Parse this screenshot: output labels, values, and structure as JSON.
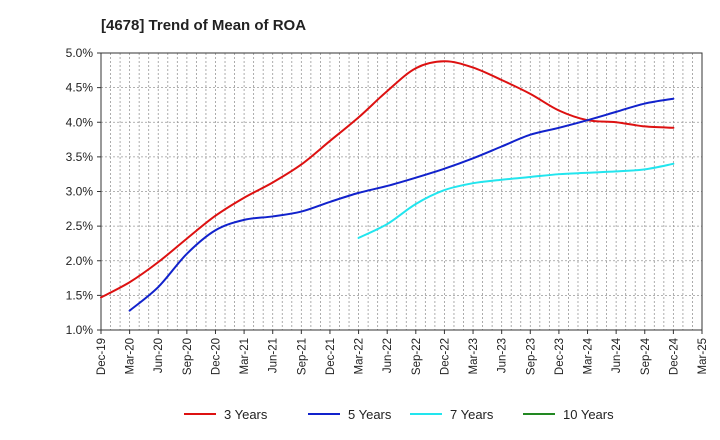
{
  "chart_data": {
    "type": "line",
    "title": "[4678]  Trend of Mean of ROA",
    "xlabel": "",
    "ylabel": "",
    "y_tick_labels": [
      "1.0%",
      "1.5%",
      "2.0%",
      "2.5%",
      "3.0%",
      "3.5%",
      "4.0%",
      "4.5%",
      "5.0%"
    ],
    "y_ticks": [
      1.0,
      1.5,
      2.0,
      2.5,
      3.0,
      3.5,
      4.0,
      4.5,
      5.0
    ],
    "ylim": [
      1.0,
      5.0
    ],
    "x_tick_labels": [
      "Dec-19",
      "Mar-20",
      "Jun-20",
      "Sep-20",
      "Dec-20",
      "Mar-21",
      "Jun-21",
      "Sep-21",
      "Dec-21",
      "Mar-22",
      "Jun-22",
      "Sep-22",
      "Dec-22",
      "Mar-23",
      "Jun-23",
      "Sep-23",
      "Dec-23",
      "Mar-24",
      "Jun-24",
      "Sep-24",
      "Dec-24",
      "Mar-25"
    ],
    "grid": true,
    "legend_position": "bottom",
    "series": [
      {
        "name": "3 Years",
        "color": "#dd1111",
        "x": [
          "Dec-19",
          "Mar-20",
          "Jun-20",
          "Sep-20",
          "Dec-20",
          "Mar-21",
          "Jun-21",
          "Sep-21",
          "Dec-21",
          "Mar-22",
          "Jun-22",
          "Sep-22",
          "Dec-22",
          "Mar-23",
          "Jun-23",
          "Sep-23",
          "Dec-23",
          "Mar-24",
          "Jun-24",
          "Sep-24",
          "Dec-24"
        ],
        "values": [
          1.47,
          1.69,
          1.98,
          2.32,
          2.65,
          2.91,
          3.13,
          3.39,
          3.73,
          4.07,
          4.45,
          4.78,
          4.88,
          4.79,
          4.61,
          4.41,
          4.17,
          4.03,
          4.0,
          3.94,
          3.92
        ]
      },
      {
        "name": "5 Years",
        "color": "#1122cc",
        "x": [
          "Mar-20",
          "Jun-20",
          "Sep-20",
          "Dec-20",
          "Mar-21",
          "Jun-21",
          "Sep-21",
          "Dec-21",
          "Mar-22",
          "Jun-22",
          "Sep-22",
          "Dec-22",
          "Mar-23",
          "Jun-23",
          "Sep-23",
          "Dec-23",
          "Mar-24",
          "Jun-24",
          "Sep-24",
          "Dec-24"
        ],
        "values": [
          1.28,
          1.62,
          2.1,
          2.44,
          2.59,
          2.64,
          2.71,
          2.85,
          2.98,
          3.08,
          3.2,
          3.33,
          3.48,
          3.65,
          3.82,
          3.92,
          4.03,
          4.15,
          4.27,
          4.34
        ]
      },
      {
        "name": "7 Years",
        "color": "#22e5ee",
        "x": [
          "Mar-22",
          "Jun-22",
          "Sep-22",
          "Dec-22",
          "Mar-23",
          "Jun-23",
          "Sep-23",
          "Dec-23",
          "Mar-24",
          "Jun-24",
          "Sep-24",
          "Dec-24"
        ],
        "values": [
          2.33,
          2.53,
          2.82,
          3.02,
          3.12,
          3.17,
          3.21,
          3.25,
          3.27,
          3.29,
          3.32,
          3.4
        ]
      },
      {
        "name": "10 Years",
        "color": "#228822",
        "x": [],
        "values": []
      }
    ]
  }
}
